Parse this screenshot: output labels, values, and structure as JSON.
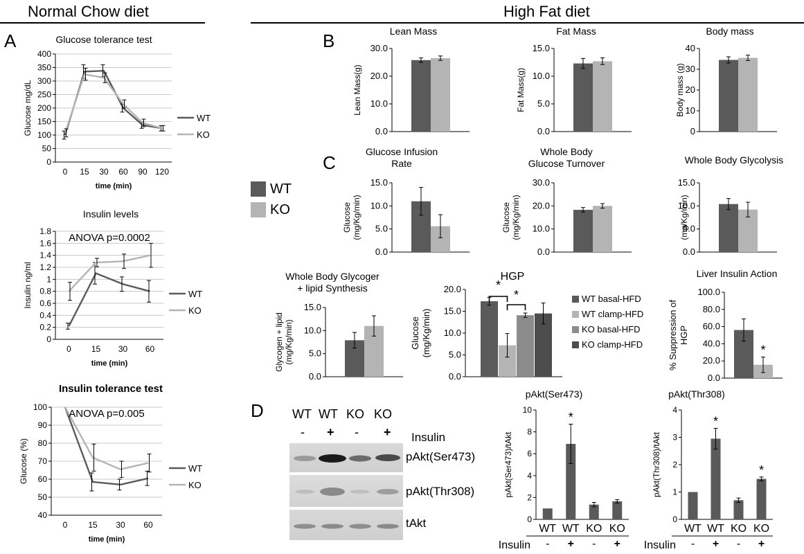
{
  "colors": {
    "wt": "#5a5a5a",
    "ko": "#b4b4b4",
    "ko_basal": "#8c8c8c",
    "ko_clamp": "#4d4d4d",
    "axis": "#000000",
    "grid": "#c8c8c8"
  },
  "headers": {
    "normal": "Normal Chow diet",
    "hfd": "High Fat diet"
  },
  "panels": {
    "A": "A",
    "B": "B",
    "C": "C",
    "D": "D"
  },
  "legend_main": {
    "wt": "WT",
    "ko": "KO"
  },
  "western": {
    "lanes": [
      "WT",
      "WT",
      "KO",
      "KO"
    ],
    "insulin_signs": [
      "-",
      "+",
      "-",
      "+"
    ],
    "insulin_label": "Insulin",
    "rows": [
      "pAkt(Ser473)",
      "pAkt(Thr308)",
      "tAkt"
    ]
  },
  "chart_data": [
    {
      "id": "gtt",
      "type": "line",
      "title": "Glucose tolerance test",
      "xlabel": "time (min)",
      "ylabel": "Glucose mg/dL",
      "x": [
        "0",
        "15",
        "30",
        "60",
        "90",
        "120"
      ],
      "ylim": [
        0,
        400
      ],
      "yticks": [
        "0",
        "50",
        "100",
        "150",
        "200",
        "250",
        "300",
        "350",
        "400"
      ],
      "grid": true,
      "legend_position": "right",
      "series": [
        {
          "name": "WT",
          "values": [
            100,
            335,
            338,
            200,
            137,
            125
          ],
          "err": [
            15,
            25,
            22,
            15,
            12,
            10
          ]
        },
        {
          "name": "KO",
          "values": [
            108,
            325,
            312,
            215,
            145,
            125
          ],
          "err": [
            15,
            22,
            18,
            15,
            14,
            10
          ]
        }
      ]
    },
    {
      "id": "insulin",
      "type": "line",
      "title": "Insulin levels",
      "xlabel": "time (min)",
      "ylabel": "Insulin ng/ml",
      "annotation": "ANOVA p=0.0002",
      "x": [
        "0",
        "15",
        "30",
        "60"
      ],
      "ylim": [
        0,
        1.8
      ],
      "yticks": [
        "0",
        "0.2",
        "0.4",
        "0.6",
        "0.8",
        "1",
        "1.2",
        "1.4",
        "1.6",
        "1.8"
      ],
      "grid": true,
      "legend_position": "right",
      "series": [
        {
          "name": "WT",
          "values": [
            0.22,
            1.1,
            0.92,
            0.8
          ],
          "err": [
            0.05,
            0.18,
            0.12,
            0.18
          ]
        },
        {
          "name": "KO",
          "values": [
            0.8,
            1.28,
            1.3,
            1.4
          ],
          "err": [
            0.15,
            0.07,
            0.12,
            0.2
          ]
        }
      ]
    },
    {
      "id": "itt",
      "type": "line",
      "title": "Insulin tolerance test",
      "xlabel": "time (min)",
      "ylabel": "Glucose (%)",
      "annotation": "ANOVA p=0.005",
      "x": [
        "0",
        "15",
        "30",
        "60"
      ],
      "ylim": [
        40,
        100
      ],
      "yticks": [
        "40",
        "50",
        "60",
        "70",
        "80",
        "90",
        "100"
      ],
      "grid": true,
      "legend_position": "right",
      "series": [
        {
          "name": "WT",
          "values": [
            100,
            58.5,
            57,
            60.5
          ],
          "err": [
            0,
            5,
            3,
            4
          ]
        },
        {
          "name": "KO",
          "values": [
            100,
            72,
            65.5,
            69
          ],
          "err": [
            0,
            7.5,
            4.5,
            5
          ]
        }
      ]
    },
    {
      "id": "lean",
      "type": "bar",
      "title": "Lean Mass",
      "ylabel": "Lean Mass(g)",
      "ylim": [
        0,
        30
      ],
      "yticks": [
        "0.0",
        "10.0",
        "20.0",
        "30.0"
      ],
      "categories": [
        "WT",
        "KO"
      ],
      "values": [
        25.8,
        26.5
      ],
      "err": [
        0.8,
        0.8
      ]
    },
    {
      "id": "fat",
      "type": "bar",
      "title": "Fat Mass",
      "ylabel": "Fat Mass(g)",
      "ylim": [
        0,
        15
      ],
      "yticks": [
        "0.0",
        "5.0",
        "10.0",
        "15.0"
      ],
      "categories": [
        "WT",
        "KO"
      ],
      "values": [
        12.3,
        12.7
      ],
      "err": [
        0.9,
        0.6
      ]
    },
    {
      "id": "body",
      "type": "bar",
      "title": "Body mass",
      "ylabel": "Body mass (g)",
      "ylim": [
        0,
        40
      ],
      "yticks": [
        "0",
        "10",
        "20",
        "30",
        "40"
      ],
      "categories": [
        "WT",
        "KO"
      ],
      "values": [
        34.5,
        35.5
      ],
      "err": [
        1.5,
        1.3
      ]
    },
    {
      "id": "gir",
      "type": "bar",
      "title": [
        "Glucose Infusion",
        "Rate"
      ],
      "ylabel": [
        "Glucose",
        "(mg/Kg/min)"
      ],
      "ylim": [
        0,
        15
      ],
      "yticks": [
        "0.0",
        "5.0",
        "10.0",
        "15.0"
      ],
      "categories": [
        "WT",
        "KO"
      ],
      "values": [
        11.0,
        5.6
      ],
      "err": [
        3.0,
        2.5
      ]
    },
    {
      "id": "turnover",
      "type": "bar",
      "title": [
        "Whole Body",
        "Glucose Turnover"
      ],
      "ylabel": [
        "Glucose",
        "(mg/Kg/min)"
      ],
      "ylim": [
        0,
        30
      ],
      "yticks": [
        "0.0",
        "10.0",
        "20.0",
        "30.0"
      ],
      "categories": [
        "WT",
        "KO"
      ],
      "values": [
        18.3,
        20.0
      ],
      "err": [
        1.0,
        1.0
      ]
    },
    {
      "id": "glycolysis",
      "type": "bar",
      "title": "Whole Body Glycolysis",
      "ylabel": "(mg/Kg/min)",
      "ylim": [
        0,
        15
      ],
      "yticks": [
        "0.0",
        "5.0",
        "10.0",
        "15.0"
      ],
      "categories": [
        "WT",
        "KO"
      ],
      "values": [
        10.4,
        9.2
      ],
      "err": [
        1.2,
        1.6
      ]
    },
    {
      "id": "glycogen",
      "type": "bar",
      "title": [
        "Whole Body Glycoger",
        "+ lipid Synthesis"
      ],
      "ylabel": [
        "Glycogen + lipid",
        "(mg/Kg/min)"
      ],
      "ylim": [
        0,
        15
      ],
      "yticks": [
        "0.0",
        "5.0",
        "10.0",
        "15.0"
      ],
      "categories": [
        "WT",
        "KO"
      ],
      "values": [
        7.9,
        11.0
      ],
      "err": [
        1.7,
        2.2
      ]
    },
    {
      "id": "hgp",
      "type": "bar",
      "title": "HGP",
      "ylabel": [
        "Glucose",
        "(mg/Kg/min)"
      ],
      "ylim": [
        0,
        20
      ],
      "yticks": [
        "0.0",
        "5.0",
        "10.0",
        "15.0",
        "20.0"
      ],
      "series": [
        {
          "name": "WT basal-HFD",
          "value": 17.3,
          "err": 0.9
        },
        {
          "name": "WT clamp-HFD",
          "value": 7.2,
          "err": 2.7
        },
        {
          "name": "KO basal-HFD",
          "value": 14.1,
          "err": 0.5
        },
        {
          "name": "KO clamp-HFD",
          "value": 14.5,
          "err": 2.4
        }
      ],
      "significance": [
        "*",
        "*"
      ],
      "legend_position": "right"
    },
    {
      "id": "liver",
      "type": "bar",
      "title": "Liver Insulin Action",
      "ylabel": [
        "% Suppression of",
        "HGP"
      ],
      "ylim": [
        0,
        100
      ],
      "yticks": [
        "0.0",
        "20.0",
        "40.0",
        "60.0",
        "80.0",
        "100.0"
      ],
      "categories": [
        "WT",
        "KO"
      ],
      "values": [
        56,
        15.5
      ],
      "err": [
        13,
        9
      ],
      "significance": [
        "",
        "*"
      ]
    },
    {
      "id": "ser473",
      "type": "bar",
      "title": "pAkt(Ser473)",
      "ylabel": "pAkt(Ser473)/tAkt",
      "ylim": [
        0,
        10
      ],
      "yticks": [
        "0",
        "2",
        "4",
        "6",
        "8",
        "10"
      ],
      "categories": [
        "WT",
        "WT",
        "KO",
        "KO"
      ],
      "insulin": [
        "-",
        "+",
        "-",
        "+"
      ],
      "insulin_label": "Insulin",
      "values": [
        1.0,
        6.9,
        1.35,
        1.65
      ],
      "err": [
        0,
        1.8,
        0.2,
        0.15
      ],
      "significance": [
        "",
        "*",
        "",
        ""
      ]
    },
    {
      "id": "thr308",
      "type": "bar",
      "title": "pAkt(Thr308)",
      "ylabel": "pAkt(Thr308)/tAkt",
      "ylim": [
        0,
        4
      ],
      "yticks": [
        "0",
        "1",
        "2",
        "3",
        "4"
      ],
      "categories": [
        "WT",
        "WT",
        "KO",
        "KO"
      ],
      "insulin": [
        "-",
        "+",
        "-",
        "+"
      ],
      "insulin_label": "Insulin",
      "values": [
        1.0,
        2.95,
        0.7,
        1.48
      ],
      "err": [
        0,
        0.38,
        0.08,
        0.07
      ],
      "significance": [
        "",
        "*",
        "",
        "*"
      ]
    }
  ]
}
